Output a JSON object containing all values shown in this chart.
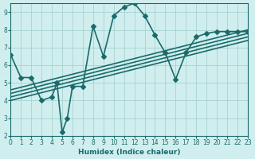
{
  "title": "",
  "xlabel": "Humidex (Indice chaleur)",
  "ylabel": "",
  "xlim": [
    0,
    23
  ],
  "ylim": [
    2,
    9.5
  ],
  "xticks": [
    0,
    1,
    2,
    3,
    4,
    5,
    6,
    7,
    8,
    9,
    10,
    11,
    12,
    13,
    14,
    15,
    16,
    17,
    18,
    19,
    20,
    21,
    22,
    23
  ],
  "yticks": [
    2,
    3,
    4,
    5,
    6,
    7,
    8,
    9
  ],
  "bg_color": "#d0eeee",
  "grid_color": "#a0cccc",
  "line_color": "#1a6b6b",
  "line_width": 1.2,
  "marker": "D",
  "marker_size": 3,
  "series": [
    {
      "x": [
        0,
        1,
        2,
        3,
        4,
        4.5,
        5,
        5.5,
        6,
        7,
        8,
        9,
        10,
        11,
        12,
        13,
        14,
        15,
        16,
        17,
        18,
        19,
        20,
        21,
        22,
        23
      ],
      "y": [
        6.6,
        5.3,
        5.3,
        4.0,
        4.2,
        5.0,
        2.2,
        3.0,
        4.8,
        4.8,
        8.2,
        6.5,
        8.8,
        9.3,
        9.5,
        8.8,
        7.7,
        6.7,
        5.2,
        6.7,
        7.6,
        7.8,
        7.9,
        7.9,
        7.9,
        7.9
      ]
    },
    {
      "x": [
        0,
        23
      ],
      "y": [
        4.2,
        7.6
      ]
    },
    {
      "x": [
        0,
        23
      ],
      "y": [
        4.4,
        7.8
      ]
    },
    {
      "x": [
        0,
        23
      ],
      "y": [
        4.6,
        8.0
      ]
    },
    {
      "x": [
        0,
        23
      ],
      "y": [
        4.0,
        7.4
      ]
    }
  ]
}
